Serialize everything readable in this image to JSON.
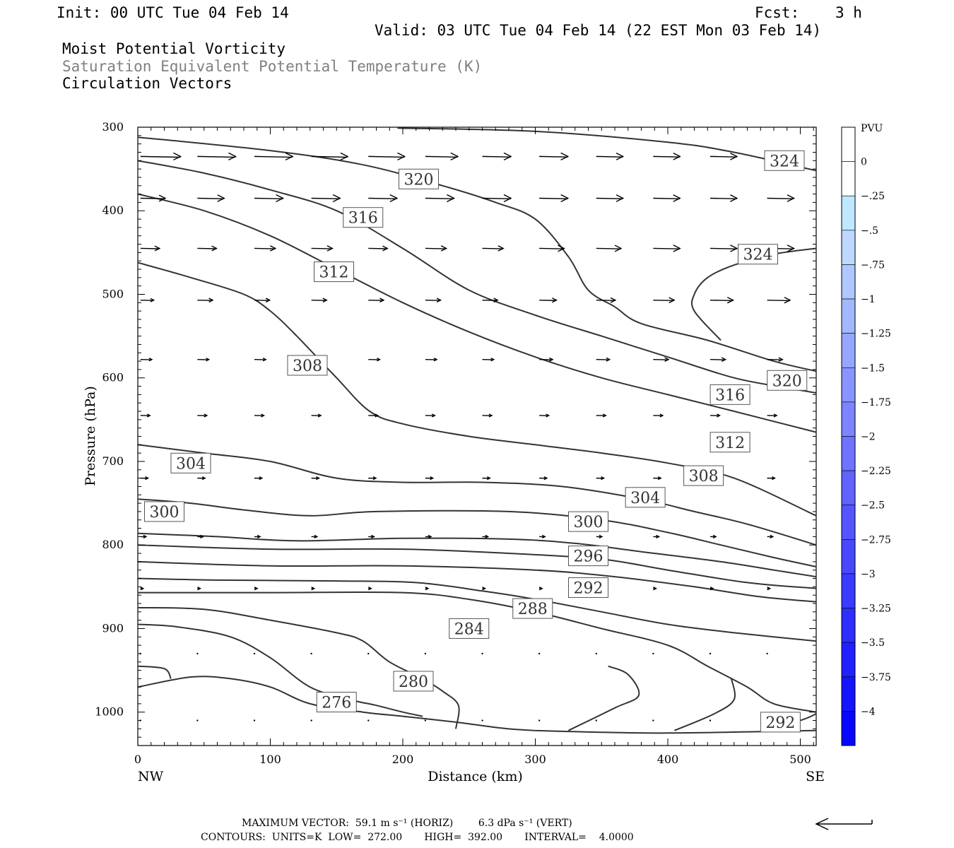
{
  "header": {
    "init": "Init: 00 UTC Tue 04 Feb 14",
    "fcst_label": "Fcst:",
    "fcst_value": "3 h",
    "valid": "Valid: 03 UTC Tue 04 Feb 14 (22 EST Mon 03 Feb 14)",
    "field1": "Moist Potential Vorticity",
    "field2": "Saturation Equivalent Potential Temperature (K)",
    "field3": "Circulation Vectors"
  },
  "footer": {
    "max_vector": "MAXIMUM VECTOR:  59.1 m s⁻¹ (HORIZ)        6.3 dPa s⁻¹ (VERT)",
    "contours": "CONTOURS:  UNITS=K  LOW=  272.00       HIGH=  392.00       INTERVAL=    4.0000"
  },
  "colors": {
    "contour": "#333333",
    "text_gray": "#808080",
    "colorbar": [
      "#ffffff",
      "#ffffff",
      "#bfe8ff",
      "#bdd9ff",
      "#b0c8ff",
      "#a3b7ff",
      "#96a6ff",
      "#8995ff",
      "#7c84ff",
      "#6f73ff",
      "#6262ff",
      "#5555ff",
      "#4848ff",
      "#3b3bff",
      "#2e2eff",
      "#2121ff",
      "#1414ff",
      "#0707ff"
    ]
  },
  "chart_data": {
    "type": "cross-section",
    "xlabel": "Distance (km)",
    "ylabel": "Pressure (hPa)",
    "xlim": [
      0,
      512
    ],
    "ylim": [
      1040,
      300
    ],
    "x_ticks": [
      "0",
      "100",
      "200",
      "300",
      "400",
      "500"
    ],
    "y_ticks": [
      "300",
      "400",
      "500",
      "600",
      "700",
      "800",
      "900",
      "1000"
    ],
    "left_end_label": "NW",
    "right_end_label": "SE",
    "colorbar": {
      "title": "PVU",
      "labels": [
        "0",
        "-.25",
        "-.5",
        "-.75",
        "-1",
        "-1.25",
        "-1.5",
        "-1.75",
        "-2",
        "-2.25",
        "-2.5",
        "-2.75",
        "-3",
        "-3.25",
        "-3.5",
        "-3.75",
        "-4"
      ]
    },
    "contours": [
      {
        "label": "276",
        "points": [
          [
            0,
            970
          ],
          [
            40,
            958
          ],
          [
            70,
            960
          ],
          [
            100,
            970
          ],
          [
            130,
            990
          ],
          [
            170,
            1000
          ],
          [
            200,
            1005
          ],
          [
            240,
            1012
          ],
          [
            280,
            1020
          ],
          [
            320,
            1023
          ],
          [
            400,
            1025
          ],
          [
            512,
            1022
          ]
        ]
      },
      {
        "label": "280",
        "points": [
          [
            0,
            895
          ],
          [
            30,
            898
          ],
          [
            70,
            910
          ],
          [
            100,
            935
          ],
          [
            130,
            970
          ],
          [
            160,
            985
          ],
          [
            180,
            992
          ],
          [
            200,
            1000
          ],
          [
            215,
            1005
          ]
        ]
      },
      {
        "label": "280",
        "points": [
          [
            0,
            875
          ],
          [
            50,
            877
          ],
          [
            100,
            890
          ],
          [
            150,
            905
          ],
          [
            170,
            915
          ],
          [
            190,
            940
          ],
          [
            215,
            960
          ],
          [
            230,
            975
          ],
          [
            242,
            992
          ],
          [
            240,
            1020
          ]
        ]
      },
      {
        "label": "284",
        "points": [
          [
            0,
            857
          ],
          [
            100,
            857
          ],
          [
            200,
            857
          ],
          [
            250,
            865
          ],
          [
            300,
            880
          ],
          [
            350,
            900
          ],
          [
            400,
            920
          ],
          [
            430,
            945
          ],
          [
            460,
            970
          ],
          [
            480,
            990
          ],
          [
            512,
            1000
          ]
        ]
      },
      {
        "label": "284",
        "points": [
          [
            0,
            945
          ],
          [
            20,
            948
          ],
          [
            25,
            960
          ]
        ]
      },
      {
        "label": "",
        "points": [
          [
            325,
            1022
          ],
          [
            360,
            995
          ],
          [
            378,
            980
          ],
          [
            370,
            955
          ],
          [
            355,
            945
          ]
        ]
      },
      {
        "label": "",
        "points": [
          [
            405,
            1022
          ],
          [
            435,
            1002
          ],
          [
            450,
            985
          ],
          [
            448,
            960
          ]
        ]
      },
      {
        "label": "288",
        "points": [
          [
            0,
            840
          ],
          [
            60,
            842
          ],
          [
            150,
            843
          ],
          [
            210,
            845
          ],
          [
            260,
            855
          ],
          [
            300,
            865
          ],
          [
            350,
            880
          ],
          [
            400,
            895
          ],
          [
            450,
            905
          ],
          [
            512,
            915
          ]
        ]
      },
      {
        "label": "292",
        "points": [
          [
            0,
            820
          ],
          [
            100,
            825
          ],
          [
            200,
            825
          ],
          [
            300,
            830
          ],
          [
            360,
            838
          ],
          [
            420,
            850
          ],
          [
            470,
            862
          ],
          [
            512,
            868
          ]
        ]
      },
      {
        "label": "292",
        "points": [
          [
            470,
            1022
          ],
          [
            500,
            1010
          ],
          [
            512,
            1002
          ]
        ]
      },
      {
        "label": "296",
        "points": [
          [
            0,
            800
          ],
          [
            100,
            805
          ],
          [
            200,
            805
          ],
          [
            280,
            810
          ],
          [
            350,
            817
          ],
          [
            400,
            830
          ],
          [
            460,
            845
          ],
          [
            512,
            852
          ]
        ]
      },
      {
        "label": "300",
        "points": [
          [
            0,
            786
          ],
          [
            60,
            790
          ],
          [
            120,
            795
          ],
          [
            200,
            792
          ],
          [
            280,
            793
          ],
          [
            330,
            798
          ],
          [
            380,
            808
          ],
          [
            440,
            820
          ],
          [
            480,
            830
          ],
          [
            512,
            838
          ]
        ]
      },
      {
        "label": "304",
        "points": [
          [
            0,
            745
          ],
          [
            40,
            750
          ],
          [
            80,
            758
          ],
          [
            130,
            765
          ],
          [
            180,
            760
          ],
          [
            280,
            760
          ],
          [
            350,
            770
          ],
          [
            400,
            785
          ],
          [
            440,
            800
          ],
          [
            480,
            815
          ],
          [
            512,
            826
          ]
        ]
      },
      {
        "label": "308",
        "points": [
          [
            0,
            680
          ],
          [
            50,
            690
          ],
          [
            100,
            700
          ],
          [
            150,
            720
          ],
          [
            200,
            725
          ],
          [
            260,
            725
          ],
          [
            320,
            730
          ],
          [
            380,
            745
          ],
          [
            420,
            760
          ],
          [
            460,
            775
          ],
          [
            512,
            800
          ]
        ]
      },
      {
        "label": "312",
        "points": [
          [
            0,
            462
          ],
          [
            40,
            480
          ],
          [
            80,
            500
          ],
          [
            100,
            520
          ],
          [
            120,
            550
          ],
          [
            150,
            600
          ],
          [
            175,
            640
          ],
          [
            200,
            655
          ],
          [
            250,
            670
          ],
          [
            300,
            680
          ],
          [
            350,
            690
          ],
          [
            400,
            702
          ],
          [
            450,
            720
          ],
          [
            512,
            765
          ]
        ]
      },
      {
        "label": "316",
        "points": [
          [
            0,
            380
          ],
          [
            50,
            400
          ],
          [
            100,
            430
          ],
          [
            150,
            470
          ],
          [
            200,
            510
          ],
          [
            250,
            545
          ],
          [
            300,
            575
          ],
          [
            350,
            600
          ],
          [
            400,
            620
          ],
          [
            450,
            640
          ],
          [
            512,
            665
          ]
        ]
      },
      {
        "label": "320",
        "points": [
          [
            0,
            340
          ],
          [
            50,
            355
          ],
          [
            100,
            375
          ],
          [
            150,
            400
          ],
          [
            200,
            445
          ],
          [
            250,
            495
          ],
          [
            300,
            525
          ],
          [
            350,
            550
          ],
          [
            400,
            575
          ],
          [
            450,
            600
          ],
          [
            490,
            612
          ],
          [
            512,
            618
          ]
        ]
      },
      {
        "label": "324",
        "points": [
          [
            0,
            312
          ],
          [
            100,
            328
          ],
          [
            170,
            345
          ],
          [
            230,
            370
          ],
          [
            270,
            390
          ],
          [
            300,
            410
          ],
          [
            325,
            455
          ],
          [
            340,
            495
          ],
          [
            360,
            515
          ],
          [
            380,
            535
          ],
          [
            430,
            555
          ],
          [
            480,
            580
          ],
          [
            512,
            592
          ]
        ]
      },
      {
        "label": "324",
        "points": [
          [
            196,
            301
          ],
          [
            300,
            305
          ],
          [
            400,
            318
          ],
          [
            450,
            330
          ],
          [
            512,
            352
          ]
        ]
      },
      {
        "label": "324",
        "points": [
          [
            440,
            555
          ],
          [
            420,
            520
          ],
          [
            420,
            500
          ],
          [
            430,
            480
          ],
          [
            450,
            465
          ],
          [
            480,
            452
          ],
          [
            512,
            445
          ]
        ]
      }
    ],
    "contour_labels": [
      {
        "text": "324",
        "x": 488,
        "y": 340
      },
      {
        "text": "320",
        "x": 212,
        "y": 362
      },
      {
        "text": "316",
        "x": 170,
        "y": 408
      },
      {
        "text": "324",
        "x": 468,
        "y": 452
      },
      {
        "text": "312",
        "x": 148,
        "y": 473
      },
      {
        "text": "308",
        "x": 128,
        "y": 585
      },
      {
        "text": "320",
        "x": 490,
        "y": 603
      },
      {
        "text": "316",
        "x": 447,
        "y": 620
      },
      {
        "text": "312",
        "x": 447,
        "y": 677
      },
      {
        "text": "304",
        "x": 40,
        "y": 702
      },
      {
        "text": "308",
        "x": 427,
        "y": 717
      },
      {
        "text": "304",
        "x": 383,
        "y": 743
      },
      {
        "text": "300",
        "x": 20,
        "y": 760
      },
      {
        "text": "300",
        "x": 340,
        "y": 772
      },
      {
        "text": "296",
        "x": 340,
        "y": 813
      },
      {
        "text": "292",
        "x": 340,
        "y": 851
      },
      {
        "text": "288",
        "x": 298,
        "y": 876
      },
      {
        "text": "284",
        "x": 250,
        "y": 900
      },
      {
        "text": "280",
        "x": 208,
        "y": 963
      },
      {
        "text": "276",
        "x": 150,
        "y": 988
      },
      {
        "text": "292",
        "x": 485,
        "y": 1012
      }
    ],
    "vector_rows": [
      {
        "p": 335,
        "u": [
          42,
          40,
          40,
          38,
          38,
          34,
          30,
          30,
          28,
          28,
          28,
          28
        ]
      },
      {
        "p": 385,
        "u": [
          26,
          28,
          30,
          30,
          30,
          30,
          30,
          30,
          28,
          28,
          28,
          28
        ]
      },
      {
        "p": 445,
        "u": [
          20,
          20,
          22,
          22,
          20,
          22,
          22,
          26,
          26,
          28,
          28,
          28
        ]
      },
      {
        "p": 507,
        "u": [
          14,
          16,
          16,
          16,
          16,
          16,
          16,
          18,
          20,
          22,
          24,
          24
        ]
      },
      {
        "p": 578,
        "u": [
          12,
          12,
          12,
          12,
          12,
          12,
          12,
          14,
          14,
          16,
          16,
          16
        ]
      },
      {
        "p": 645,
        "u": [
          10,
          10,
          10,
          10,
          10,
          10,
          10,
          10,
          10,
          10,
          10,
          10
        ]
      },
      {
        "p": 720,
        "u": [
          8,
          8,
          8,
          8,
          8,
          8,
          8,
          8,
          8,
          8,
          8,
          8
        ]
      },
      {
        "p": 790,
        "u": [
          6,
          6,
          6,
          6,
          6,
          6,
          6,
          6,
          6,
          6,
          6,
          6
        ]
      },
      {
        "p": 852,
        "u": [
          3,
          3,
          3,
          3,
          3,
          3,
          3,
          3,
          3,
          3,
          3,
          3
        ]
      },
      {
        "p": 930,
        "u": [
          2,
          2,
          2,
          2,
          2,
          2,
          1,
          1,
          1,
          1,
          1,
          1
        ]
      },
      {
        "p": 1010,
        "u": [
          1,
          1,
          1,
          1,
          1,
          1,
          1,
          1,
          1,
          1,
          1,
          1
        ]
      }
    ]
  }
}
